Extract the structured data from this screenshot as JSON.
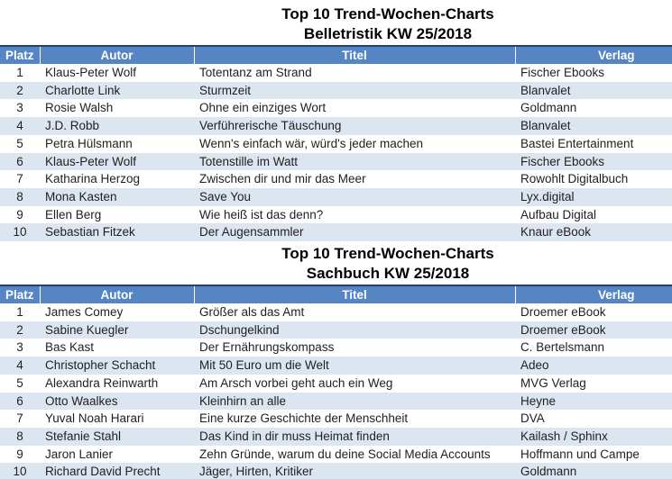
{
  "colors": {
    "header_bg": "#5585C2",
    "header_text": "#ffffff",
    "header_top_border": "#1F4272",
    "row_band": "#DCE6F1",
    "body_text": "#1F1F1F",
    "title_text": "#000000"
  },
  "tables": [
    {
      "title": "Top 10 Trend-Wochen-Charts",
      "subtitle": "Belletristik KW 25/2018",
      "columns": {
        "platz": "Platz",
        "autor": "Autor",
        "titel": "Titel",
        "verlag": "Verlag"
      },
      "rows": [
        {
          "platz": "1",
          "autor": "Klaus-Peter Wolf",
          "titel": "Totentanz am Strand",
          "verlag": "Fischer Ebooks"
        },
        {
          "platz": "2",
          "autor": "Charlotte Link",
          "titel": "Sturmzeit",
          "verlag": "Blanvalet"
        },
        {
          "platz": "3",
          "autor": "Rosie Walsh",
          "titel": "Ohne ein einziges Wort",
          "verlag": "Goldmann"
        },
        {
          "platz": "4",
          "autor": "J.D. Robb",
          "titel": "Verführerische Täuschung",
          "verlag": "Blanvalet"
        },
        {
          "platz": "5",
          "autor": "Petra Hülsmann",
          "titel": "Wenn's einfach wär, würd's jeder machen",
          "verlag": "Bastei Entertainment"
        },
        {
          "platz": "6",
          "autor": "Klaus-Peter Wolf",
          "titel": "Totenstille im Watt",
          "verlag": "Fischer Ebooks"
        },
        {
          "platz": "7",
          "autor": "Katharina Herzog",
          "titel": "Zwischen dir und mir das Meer",
          "verlag": "Rowohlt Digitalbuch"
        },
        {
          "platz": "8",
          "autor": "Mona Kasten",
          "titel": "Save You",
          "verlag": "Lyx.digital"
        },
        {
          "platz": "9",
          "autor": "Ellen Berg",
          "titel": "Wie heiß ist das denn?",
          "verlag": "Aufbau Digital"
        },
        {
          "platz": "10",
          "autor": "Sebastian Fitzek",
          "titel": "Der Augensammler",
          "verlag": "Knaur eBook"
        }
      ]
    },
    {
      "title": "Top 10 Trend-Wochen-Charts",
      "subtitle": "Sachbuch KW 25/2018",
      "columns": {
        "platz": "Platz",
        "autor": "Autor",
        "titel": "Titel",
        "verlag": "Verlag"
      },
      "rows": [
        {
          "platz": "1",
          "autor": "James Comey",
          "titel": "Größer als das Amt",
          "verlag": "Droemer eBook"
        },
        {
          "platz": "2",
          "autor": "Sabine Kuegler",
          "titel": "Dschungelkind",
          "verlag": "Droemer eBook"
        },
        {
          "platz": "3",
          "autor": "Bas Kast",
          "titel": "Der Ernährungskompass",
          "verlag": "C. Bertelsmann"
        },
        {
          "platz": "4",
          "autor": "Christopher Schacht",
          "titel": "Mit 50 Euro um die Welt",
          "verlag": "Adeo"
        },
        {
          "platz": "5",
          "autor": "Alexandra Reinwarth",
          "titel": "Am Arsch vorbei geht auch ein Weg",
          "verlag": "MVG Verlag"
        },
        {
          "platz": "6",
          "autor": "Otto Waalkes",
          "titel": "Kleinhirn an alle",
          "verlag": "Heyne"
        },
        {
          "platz": "7",
          "autor": "Yuval Noah Harari",
          "titel": "Eine kurze Geschichte der Menschheit",
          "verlag": "DVA"
        },
        {
          "platz": "8",
          "autor": "Stefanie Stahl",
          "titel": "Das Kind in dir muss Heimat finden",
          "verlag": "Kailash / Sphinx"
        },
        {
          "platz": "9",
          "autor": "Jaron Lanier",
          "titel": "Zehn Gründe, warum du deine Social Media Accounts",
          "verlag": "Hoffmann und Campe"
        },
        {
          "platz": "10",
          "autor": "Richard David Precht",
          "titel": "Jäger, Hirten, Kritiker",
          "verlag": "Goldmann"
        }
      ]
    }
  ]
}
